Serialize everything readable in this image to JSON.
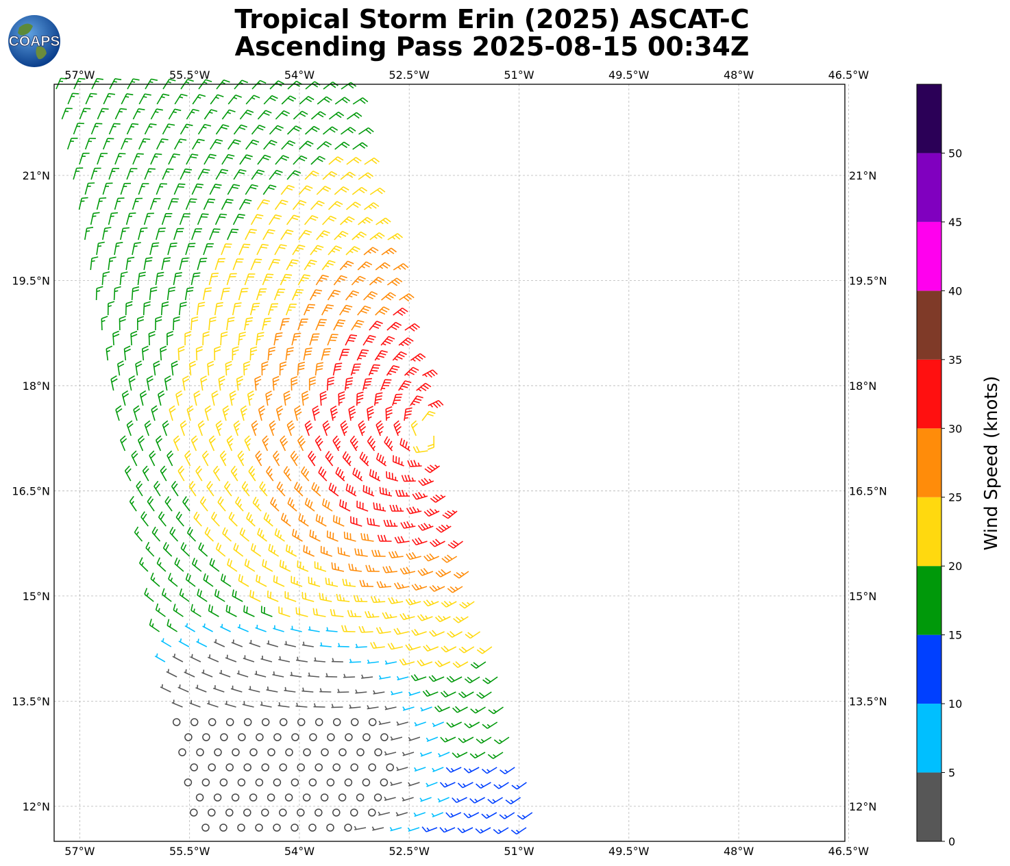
{
  "header": {
    "title_line1": "Tropical Storm Erin (2025) ASCAT-C",
    "title_line2": "Ascending Pass 2025-08-15 00:34Z",
    "logo_text": "COAPS"
  },
  "map": {
    "lon_range": [
      -57.35,
      -46.55
    ],
    "lat_range": [
      11.5,
      22.3
    ],
    "lon_ticks": [
      -57,
      -55.5,
      -54,
      -52.5,
      -51,
      -49.5,
      -48,
      -46.5
    ],
    "lon_labels": [
      "57°W",
      "55.5°W",
      "54°W",
      "52.5°W",
      "51°W",
      "49.5°W",
      "48°W",
      "46.5°W"
    ],
    "lat_ticks": [
      12,
      13.5,
      15,
      16.5,
      18,
      19.5,
      21
    ],
    "lat_labels": [
      "12°N",
      "13.5°N",
      "15°N",
      "16.5°N",
      "18°N",
      "19.5°N",
      "21°N"
    ],
    "gridlines": true,
    "wind_field": {
      "storm_center": {
        "lon": -52.2,
        "lat": 17.3
      },
      "calm_area_center": {
        "lon": -54.5,
        "lat": 12.6
      }
    }
  },
  "colorbar": {
    "label": "Wind Speed (knots)",
    "range": [
      0,
      55
    ],
    "tick_values": [
      0,
      5,
      10,
      15,
      20,
      25,
      30,
      35,
      40,
      45,
      50
    ],
    "tick_labels": [
      "0",
      "5",
      "10",
      "15",
      "20",
      "25",
      "30",
      "35",
      "40",
      "45",
      "50"
    ],
    "bins": [
      {
        "min": 0,
        "max": 5,
        "color": "#575757"
      },
      {
        "min": 5,
        "max": 10,
        "color": "#00bfff"
      },
      {
        "min": 10,
        "max": 15,
        "color": "#0040ff"
      },
      {
        "min": 15,
        "max": 20,
        "color": "#00990a"
      },
      {
        "min": 20,
        "max": 25,
        "color": "#ffd90f"
      },
      {
        "min": 25,
        "max": 30,
        "color": "#ff8c0a"
      },
      {
        "min": 30,
        "max": 35,
        "color": "#ff1010"
      },
      {
        "min": 35,
        "max": 40,
        "color": "#7f3a28"
      },
      {
        "min": 40,
        "max": 45,
        "color": "#ff00ee"
      },
      {
        "min": 45,
        "max": 50,
        "color": "#8000bf"
      },
      {
        "min": 50,
        "max": 55,
        "color": "#2b0057"
      }
    ]
  }
}
